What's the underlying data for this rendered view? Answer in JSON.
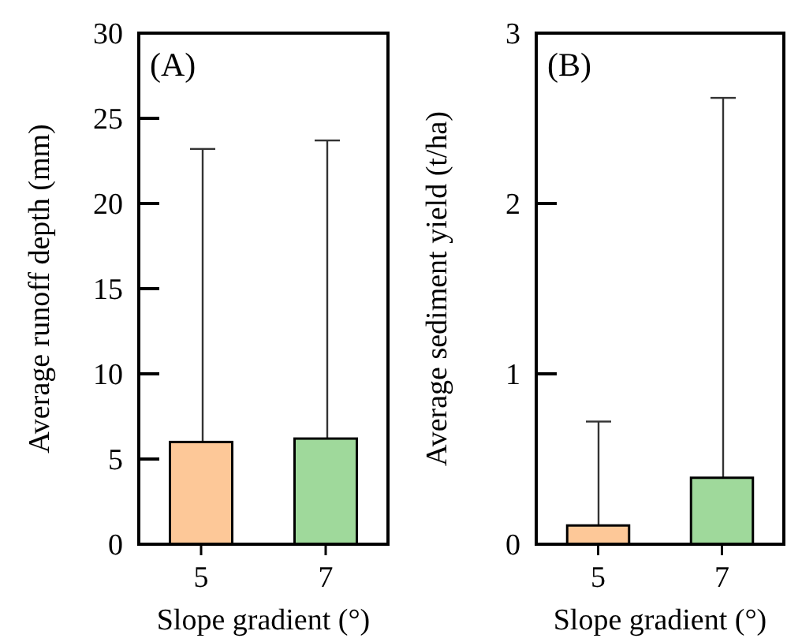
{
  "chart_data": [
    {
      "type": "bar",
      "categories": [
        "5",
        "7"
      ],
      "values": [
        6.0,
        6.2
      ],
      "colors": [
        "#fdc898",
        "#9fd99b"
      ],
      "errors": [
        [
          6.0,
          23.2
        ],
        [
          6.2,
          23.7
        ]
      ],
      "ylim": [
        0,
        30
      ],
      "yticks": [
        0,
        5,
        10,
        15,
        20,
        25,
        30
      ],
      "xlabel": "Slope gradient (°)",
      "ylabel": "Average runoff depth (mm)",
      "annotations": [
        "(A)"
      ]
    },
    {
      "type": "bar",
      "categories": [
        "5",
        "7"
      ],
      "values": [
        0.11,
        0.39
      ],
      "colors": [
        "#fdc898",
        "#9fd99b"
      ],
      "errors": [
        [
          0.11,
          0.72
        ],
        [
          0.39,
          2.62
        ]
      ],
      "ylim": [
        0,
        3
      ],
      "yticks": [
        0,
        1,
        2,
        3
      ],
      "xlabel": "Slope gradient (°)",
      "ylabel": "Average sediment yield (t/ha)",
      "annotations": [
        "(B)"
      ]
    }
  ]
}
